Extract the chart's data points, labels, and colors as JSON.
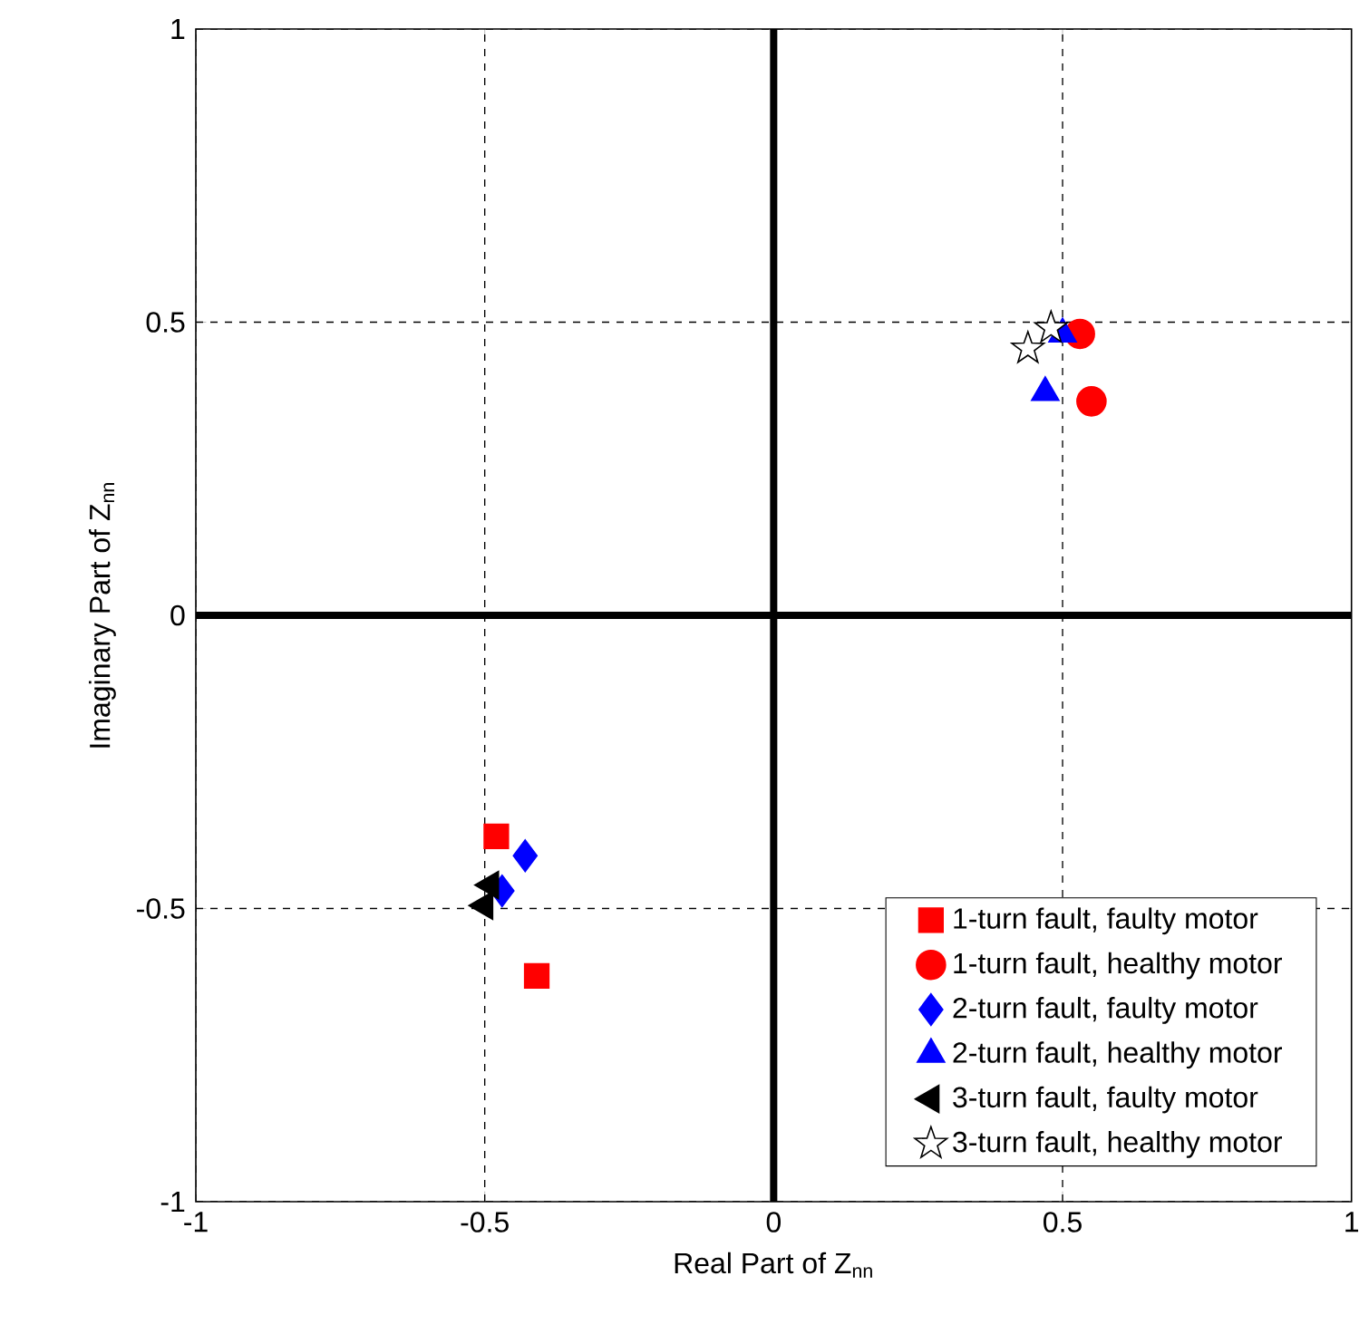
{
  "chart_data": {
    "type": "scatter",
    "xlabel": "Real Part of Z$_{nn}$",
    "ylabel": "Imaginary Part of Z$_{nn}$",
    "xlim": [
      -1,
      1
    ],
    "ylim": [
      -1,
      1
    ],
    "xticks": [
      -1,
      -0.5,
      0,
      0.5,
      1
    ],
    "yticks": [
      -1,
      -0.5,
      0,
      0.5,
      1
    ],
    "grid": true,
    "legend": "bottom right",
    "series": [
      {
        "type": "line",
        "color": "#000000",
        "marker": "none",
        "x": [
          0,
          0
        ],
        "values": [
          -1,
          1
        ]
      },
      {
        "type": "line",
        "color": "#000000",
        "marker": "none",
        "x": [
          -1,
          1
        ],
        "values": [
          0,
          0
        ]
      },
      {
        "name": "1-turn fault, faulty motor",
        "color": "#ff0000",
        "marker": "square",
        "x": [
          -0.48,
          -0.41
        ],
        "values": [
          -0.377,
          -0.615
        ]
      },
      {
        "name": "1-turn fault, healthy motor",
        "color": "#ff0000",
        "marker": "circle",
        "x": [
          0.53,
          0.55
        ],
        "values": [
          0.48,
          0.365
        ]
      },
      {
        "name": "2-turn fault, faulty motor",
        "color": "#0000ff",
        "marker": "diamond",
        "x": [
          -0.43,
          -0.47
        ],
        "values": [
          -0.41,
          -0.47
        ]
      },
      {
        "name": "2-turn fault, healthy motor",
        "color": "#0000ff",
        "marker": "triangle",
        "x": [
          0.5,
          0.47
        ],
        "values": [
          0.48,
          0.38
        ]
      },
      {
        "name": "3-turn fault, faulty motor",
        "color": "#000000",
        "marker": "triangle-left",
        "x": [
          -0.49,
          -0.5
        ],
        "values": [
          -0.46,
          -0.495
        ]
      },
      {
        "name": "3-turn fault, healthy motor",
        "color": "#000000",
        "marker": "star",
        "x": [
          0.48,
          0.44
        ],
        "values": [
          0.49,
          0.455
        ]
      }
    ]
  }
}
